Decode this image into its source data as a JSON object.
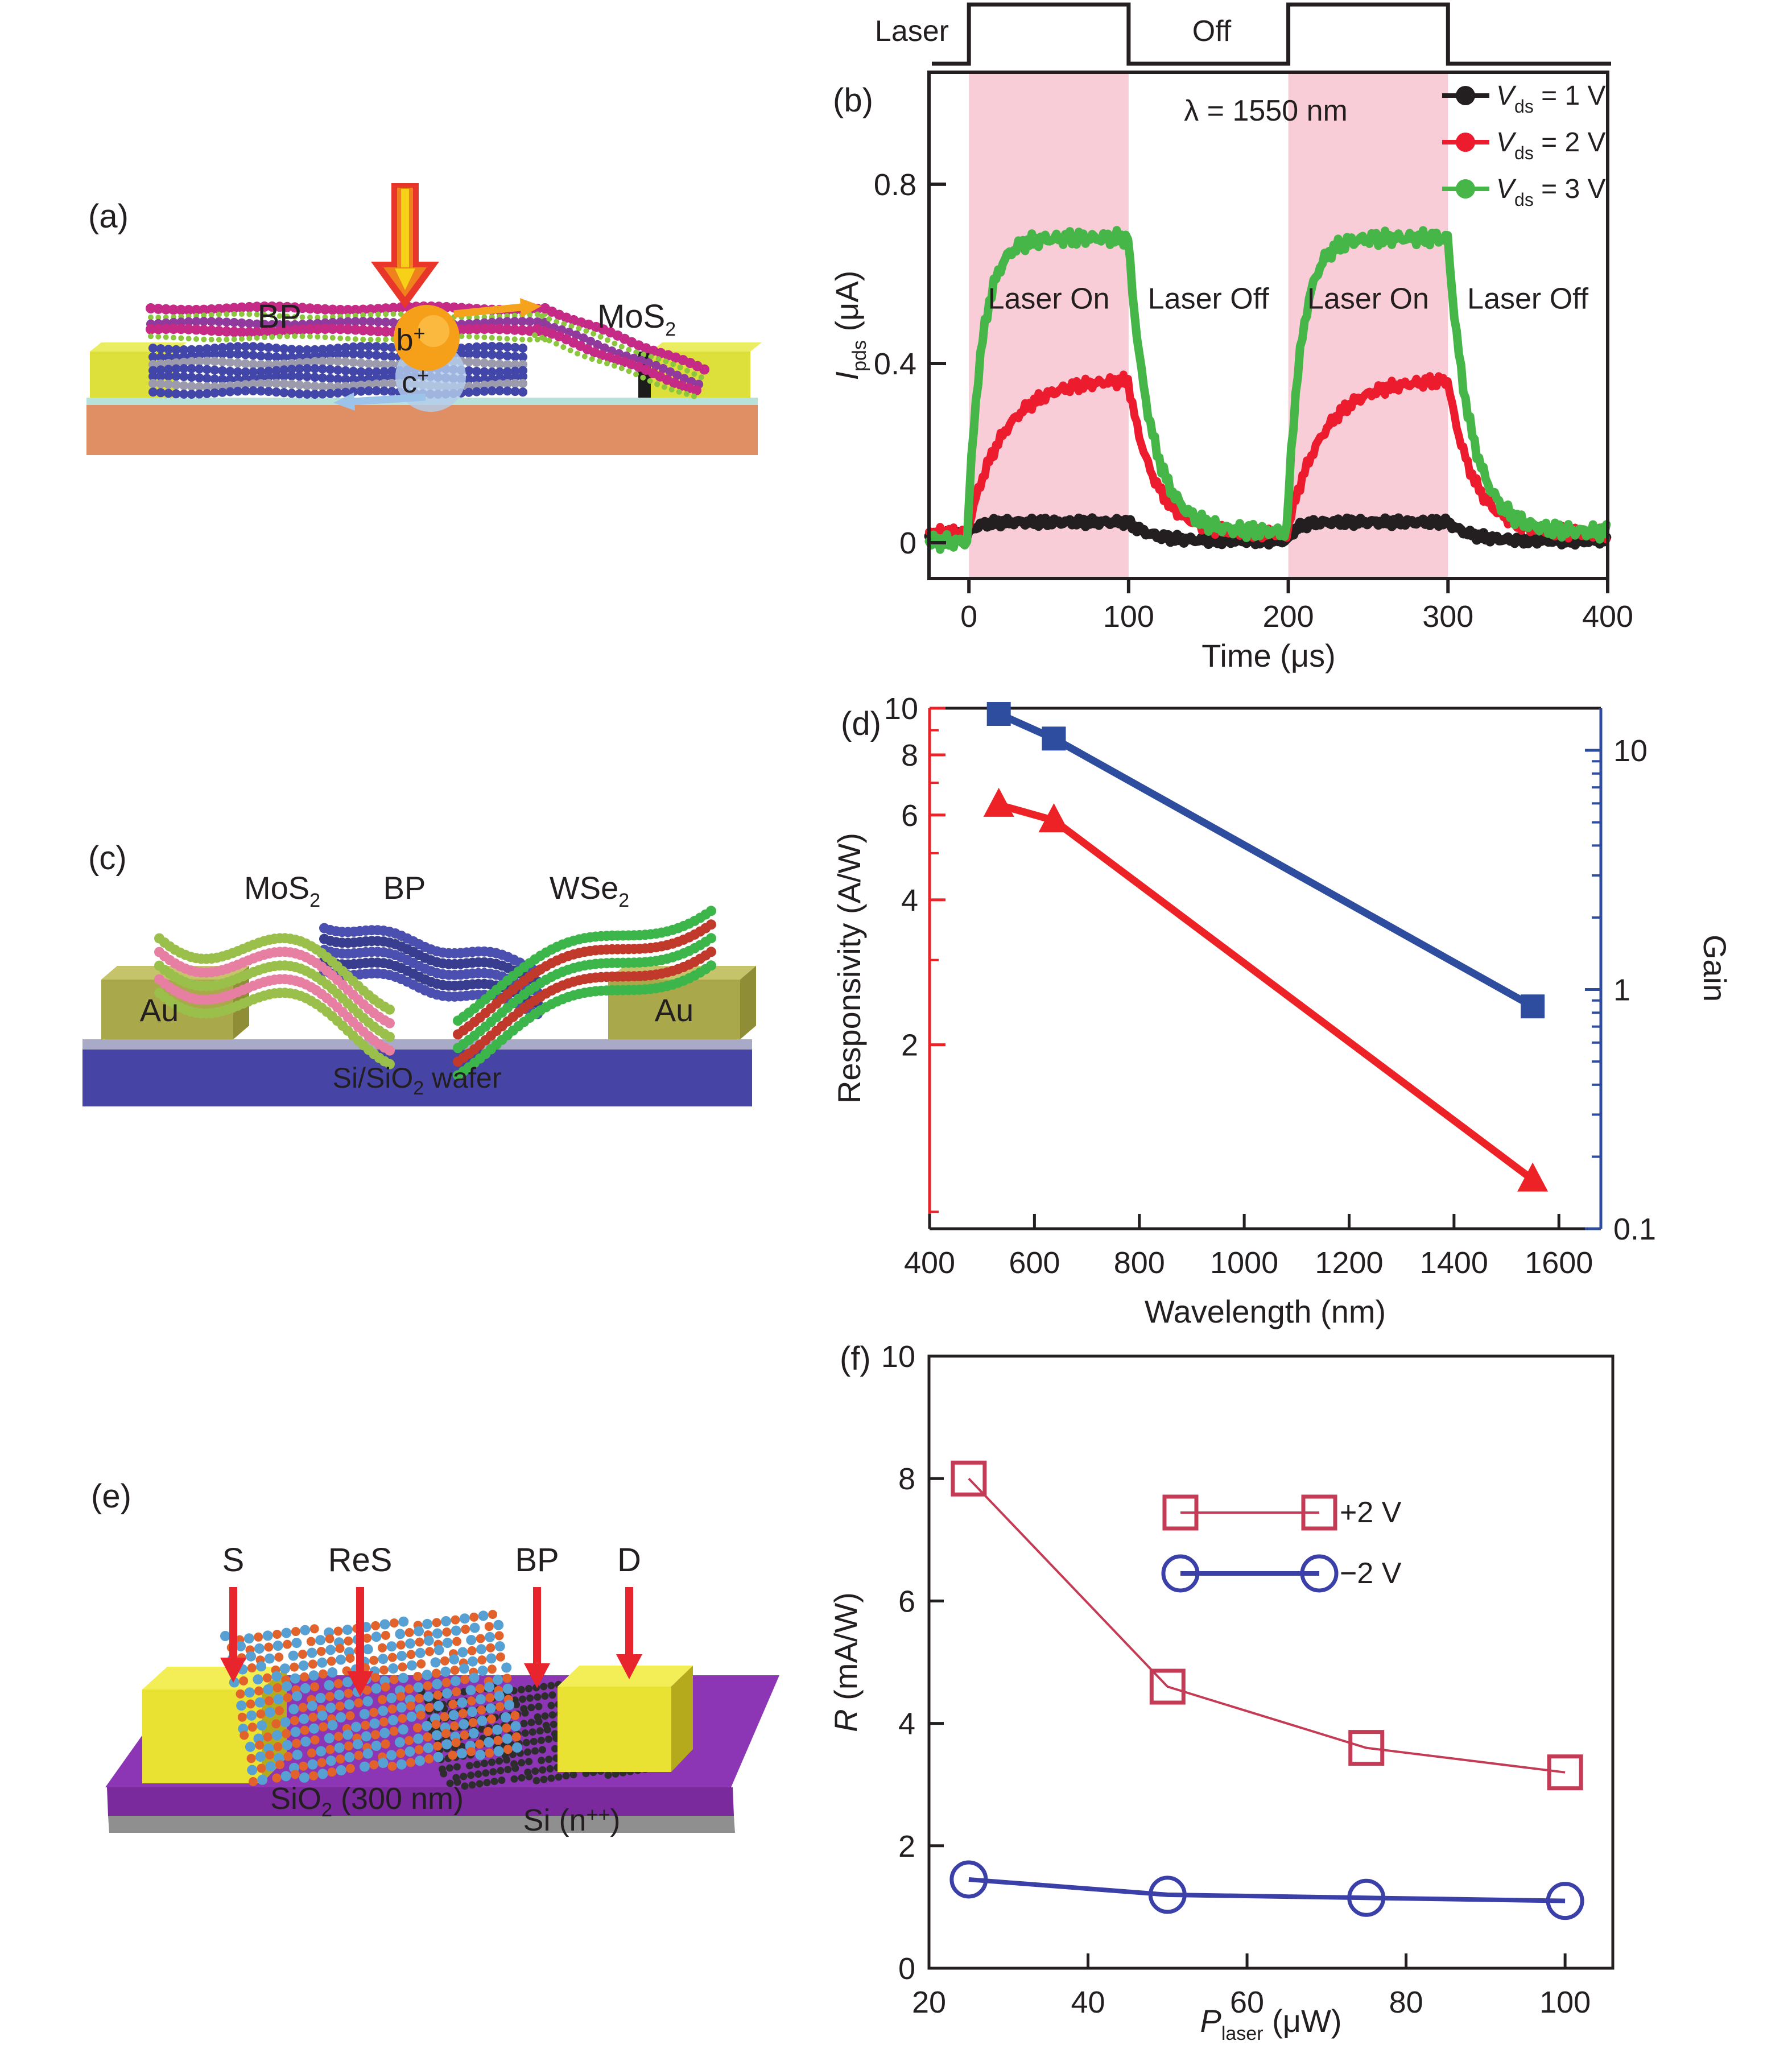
{
  "chart_data": [
    {
      "id": "b",
      "type": "line",
      "panel_label": "(b)",
      "timing_labels": {
        "laser": "Laser",
        "off": "Off"
      },
      "annotation": "λ = 1550 nm",
      "xlabel": "Time (μs)",
      "ylabel_parts": [
        "I",
        "pds",
        " (μA)"
      ],
      "xlim": [
        -25,
        400
      ],
      "ylim": [
        -0.08,
        1.05
      ],
      "xticks": [
        0,
        100,
        200,
        300,
        400
      ],
      "yticks": [
        0,
        0.4,
        0.8
      ],
      "ytick_labels": [
        "0",
        "0.4",
        "0.8"
      ],
      "laser_on_windows": [
        [
          0,
          100
        ],
        [
          200,
          300
        ]
      ],
      "band_color": "#f9cdd7",
      "region_labels": [
        "Laser On",
        "Laser Off",
        "Laser On",
        "Laser Off"
      ],
      "region_label_y": 0.545,
      "legend_position": "top-right-inside",
      "series": [
        {
          "label_parts": [
            "V",
            "ds",
            " = 1 V"
          ],
          "color": "#231f20",
          "base": 0.018,
          "plateau": 0.046,
          "off_level": 0.004,
          "tau_rise": 6,
          "tau_fall": 14,
          "width": 17,
          "noise": 0.006
        },
        {
          "label_parts": [
            "V",
            "ds",
            " = 2 V"
          ],
          "color": "#ec1c2e",
          "base": 0.022,
          "plateau": 0.365,
          "off_level": 0.02,
          "tau_rise": 22,
          "tau_fall": 16,
          "width": 14,
          "noise": 0.009
        },
        {
          "label_parts": [
            "V",
            "ds",
            " = 3 V"
          ],
          "color": "#47b648",
          "base": 0.002,
          "plateau": 0.68,
          "off_level": 0.024,
          "tau_rise": 9,
          "tau_fall": 14,
          "width": 15,
          "noise": 0.011
        }
      ]
    },
    {
      "id": "d",
      "type": "line",
      "panel_label": "(d)",
      "xlabel": "Wavelength (nm)",
      "ylabel_left": "Responsivity (A/W)",
      "ylabel_right": "Gain",
      "xlim": [
        400,
        1680
      ],
      "xticks": [
        400,
        600,
        800,
        1000,
        1200,
        1400,
        1600
      ],
      "ylim_left": [
        0.83,
        10
      ],
      "yticks_left": [
        10,
        8,
        6,
        4,
        2
      ],
      "yticks_left_labels": [
        "10",
        "8",
        "6",
        "4",
        "2"
      ],
      "yticks_left_minor": [
        9,
        7,
        5,
        3,
        0.9
      ],
      "ylim_right": [
        0.1,
        15
      ],
      "yticks_right": [
        10,
        1,
        0.1
      ],
      "yticks_right_labels": [
        "10",
        "1",
        "0.1"
      ],
      "x": [
        532,
        637,
        1550
      ],
      "series": [
        {
          "name": "Responsivity",
          "axis": "left",
          "marker": "triangle",
          "color": "#ec2227",
          "line_width": 13,
          "values": [
            6.3,
            5.85,
            1.05
          ]
        },
        {
          "name": "Gain",
          "axis": "right",
          "marker": "square",
          "color": "#2e4d9e",
          "line_width": 13,
          "values": [
            14.2,
            11.2,
            0.85
          ]
        }
      ]
    },
    {
      "id": "f",
      "type": "line",
      "panel_label": "(f)",
      "xlabel_parts": [
        "P",
        "laser",
        " (μW)"
      ],
      "ylabel_parts": [
        "R",
        " (mA/W)"
      ],
      "xlim": [
        20,
        106
      ],
      "ylim": [
        0,
        10
      ],
      "xticks": [
        20,
        40,
        60,
        80,
        100
      ],
      "yticks": [
        0,
        2,
        4,
        6,
        8,
        10
      ],
      "x": [
        25,
        50,
        75,
        100
      ],
      "legend_position": "center-inside",
      "series": [
        {
          "name": "+2 V",
          "marker": "square",
          "color": "#c43b55",
          "line_width": 4,
          "values": [
            8.0,
            4.6,
            3.6,
            3.2
          ]
        },
        {
          "name": "−2 V",
          "marker": "circle",
          "color": "#3b3fa8",
          "line_width": 8,
          "values": [
            1.45,
            1.2,
            1.15,
            1.1
          ]
        }
      ]
    }
  ],
  "panels": {
    "a": {
      "label": "(a)",
      "bp": "BP",
      "mos2": [
        "MoS",
        "2"
      ],
      "b_plus": [
        "b",
        "+"
      ],
      "c_plus": [
        "c",
        "+"
      ],
      "colors": {
        "substrate": "#df8f63",
        "oxide": "#b7e2da",
        "electrode": "#dde03a",
        "electrode_top": "#eaec62",
        "contact_dark": "#1c1c1c",
        "bp_atom": "#4246a8",
        "bp_atom2": "#9b9bad",
        "mos2_s": "#c42a86",
        "mos2_mo": "#8f3a9c",
        "mos2_edge": "#8cc63f",
        "laser_red": "#e8372a",
        "laser_orange": "#f0821e",
        "laser_yellow": "#f7d117",
        "hole": "#f6a01a",
        "hole_hi": "#fcc14e",
        "electron": "#b3cdec",
        "arrow_orange": "#f5a31d",
        "arrow_blue": "#9cc3ea",
        "bp_text": "#2b3990",
        "mos2_text": "#ec1e8c",
        "text": "#1a1a1a"
      }
    },
    "c": {
      "label": "(c)",
      "mos2": [
        "MoS",
        "2"
      ],
      "bp": "BP",
      "wse2": [
        "WSe",
        "2"
      ],
      "au": "Au",
      "wafer": [
        "Si/SiO",
        "2",
        " wafer"
      ],
      "colors": {
        "au_front": "#a9a84b",
        "au_top": "#c6c46a",
        "au_side": "#8f8d35",
        "interlayer": "#a9a9c8",
        "wafer": "#4645a6",
        "mos2_g": "#9abf4a",
        "mos2_p": "#e77fa2",
        "bp1": "#4a4fb0",
        "bp2": "#393d8f",
        "wse_g": "#3cb54a",
        "wse_r": "#c0392b",
        "text": "#3a3a3a",
        "wafer_text": "#ffffff"
      }
    },
    "e": {
      "label": "(e)",
      "contacts": [
        "S",
        "ReS",
        "BP",
        "D"
      ],
      "oxide": [
        "SiO",
        "2",
        " (300 nm)"
      ],
      "si": [
        "Si (n",
        "++",
        ")"
      ],
      "colors": {
        "sub_top": "#8d36b5",
        "sub_front": "#7a2a9c",
        "base": "#8f8f8f",
        "el_front": "#e9e233",
        "el_top": "#f3ee55",
        "el_side": "#b5a91c",
        "res_o": "#e2622b",
        "res_b": "#56a0d3",
        "bp": "#2d2d2d",
        "arrow": "#e8242c",
        "text": "#3a3a3a",
        "oxide_text": "#ffffff"
      }
    }
  }
}
